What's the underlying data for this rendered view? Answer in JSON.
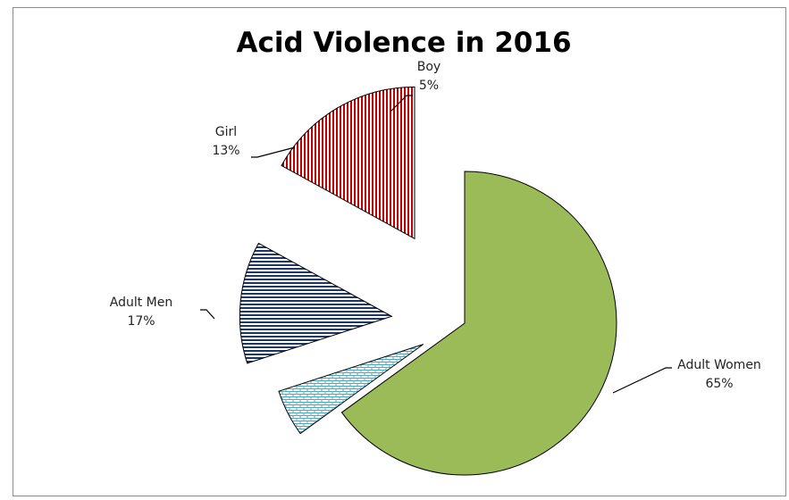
{
  "chart_data": {
    "type": "pie",
    "title": "Acid Violence in 2016",
    "slices": [
      {
        "label": "Adult Women",
        "value": 65,
        "value_label": "65%",
        "color": "#9bbb59"
      },
      {
        "label": "Boy",
        "value": 5,
        "value_label": "5%",
        "color": "#4bacc6"
      },
      {
        "label": "Girl",
        "value": 13,
        "value_label": "13%",
        "color": "#1f3864"
      },
      {
        "label": "Adult Men",
        "value": 17,
        "value_label": "17%",
        "color": "#c00000"
      }
    ],
    "exploded": true,
    "legend": "none"
  }
}
